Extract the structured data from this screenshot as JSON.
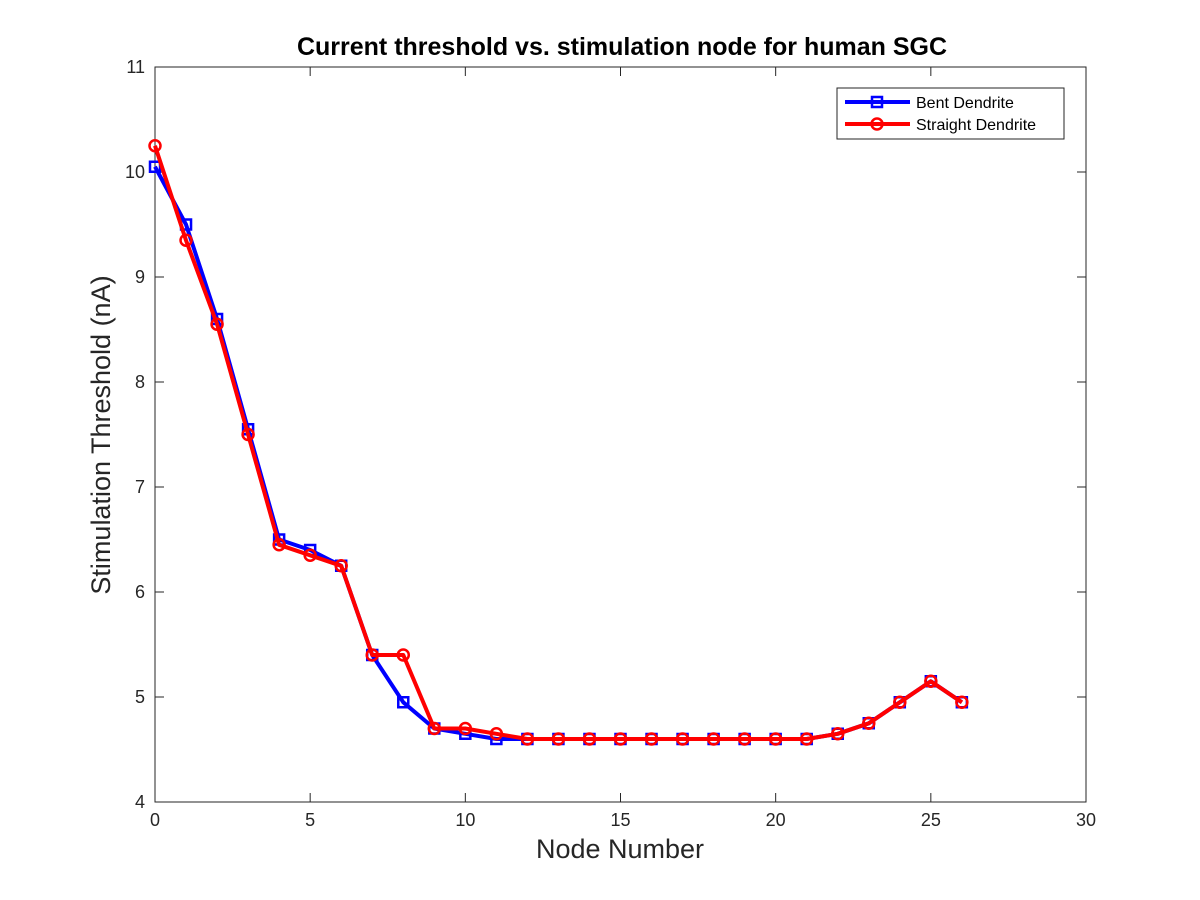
{
  "chart_data": {
    "type": "line",
    "title": "Current threshold vs. stimulation node for human SGC",
    "xlabel": "Node Number",
    "ylabel": "Stimulation Threshold (nA)",
    "xlim": [
      0,
      30
    ],
    "ylim": [
      4,
      11
    ],
    "xticks": [
      0,
      5,
      10,
      15,
      20,
      25,
      30
    ],
    "yticks": [
      4,
      5,
      6,
      7,
      8,
      9,
      10,
      11
    ],
    "grid": false,
    "legend_position": "top-right",
    "x": [
      0,
      1,
      2,
      3,
      4,
      5,
      6,
      7,
      8,
      9,
      10,
      11,
      12,
      13,
      14,
      15,
      16,
      17,
      18,
      19,
      20,
      21,
      22,
      23,
      24,
      25,
      26
    ],
    "series": [
      {
        "name": "Bent Dendrite",
        "color": "#0000ff",
        "marker": "square",
        "values": [
          10.05,
          9.5,
          8.6,
          7.55,
          6.5,
          6.4,
          6.25,
          5.4,
          4.95,
          4.7,
          4.65,
          4.6,
          4.6,
          4.6,
          4.6,
          4.6,
          4.6,
          4.6,
          4.6,
          4.6,
          4.6,
          4.6,
          4.65,
          4.75,
          4.95,
          5.15,
          4.95
        ]
      },
      {
        "name": "Straight Dendrite",
        "color": "#ff0000",
        "marker": "circle",
        "values": [
          10.25,
          9.35,
          8.55,
          7.5,
          6.45,
          6.35,
          6.25,
          5.4,
          5.4,
          4.7,
          4.7,
          4.65,
          4.6,
          4.6,
          4.6,
          4.6,
          4.6,
          4.6,
          4.6,
          4.6,
          4.6,
          4.6,
          4.65,
          4.75,
          4.95,
          5.15,
          4.95
        ]
      }
    ]
  }
}
